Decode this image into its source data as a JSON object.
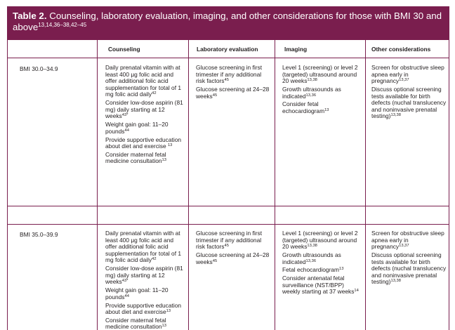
{
  "title": {
    "label": "Table 2.",
    "text": "Counseling, laboratory evaluation, imaging, and other considerations for those with BMI 30 and above",
    "refs": "13,14,36–38,42–45"
  },
  "columns": [
    "Counseling",
    "Laboratory evaluation",
    "Imaging",
    "Other considerations"
  ],
  "rows": [
    {
      "label": "BMI 30.0–34.9",
      "counseling": [
        {
          "text": "Daily prenatal vitamin with at least 400 μg folic acid and offer additional folic acid supplementation for total of 1 mg folic acid daily",
          "ref": "42"
        },
        {
          "text": "Consider low-dose aspirin (81 mg) daily starting at 12 weeks",
          "ref": "43*"
        },
        {
          "text": "Weight gain goal: 11–20 pounds",
          "ref": "44"
        },
        {
          "text": "Provide supportive education about diet and exercise ",
          "ref": "13"
        },
        {
          "text": "Consider maternal fetal medicine consultation",
          "ref": "13"
        }
      ],
      "lab": [
        {
          "text": "Glucose screening in first trimester if any additional risk factors",
          "ref": "45"
        },
        {
          "text": "Glucose screening at 24–28 weeks",
          "ref": "45"
        }
      ],
      "imaging": [
        {
          "text": "Level 1 (screening) or level 2 (targeted) ultrasound around 20 weeks",
          "ref": "13,38"
        },
        {
          "text": "Growth ultrasounds as indicated",
          "ref": "13,36"
        },
        {
          "text": "Consider fetal echocardiogram",
          "ref": "13"
        }
      ],
      "other": [
        {
          "text": "Screen for obstructive sleep apnea early in pregnancy",
          "ref": "13,37"
        },
        {
          "text": "Discuss optional screening tests available for birth defects (nuchal translucency and noninvasive prenatal testing)",
          "ref": "13,38"
        }
      ]
    },
    {
      "label": "BMI 35.0–39.9",
      "counseling": [
        {
          "text": "Daily prenatal vitamin with at least 400 μg folic acid and offer additional folic acid supplementation for total of 1 mg folic acid daily",
          "ref": "42"
        },
        {
          "text": "Consider low-dose aspirin (81 mg) daily starting at 12 weeks",
          "ref": "43*"
        },
        {
          "text": "Weight gain goal: 11–20 pounds",
          "ref": "44"
        },
        {
          "text": "Provide supportive education about diet and exercise",
          "ref": "13"
        },
        {
          "text": "Consider maternal fetal medicine consultation",
          "ref": "13"
        }
      ],
      "lab": [
        {
          "text": "Glucose screening in first trimester if any additional risk factors",
          "ref": "45"
        },
        {
          "text": "Glucose screening at 24–28 weeks",
          "ref": "45"
        }
      ],
      "imaging": [
        {
          "text": "Level 1 (screening) or level 2 (targeted) ultrasound around 20 weeks",
          "ref": "13,38"
        },
        {
          "text": "Growth ultrasounds as indicated",
          "ref": "13,36"
        },
        {
          "text": "Fetal echocardiogram",
          "ref": "13"
        },
        {
          "text": "Consider antenatal fetal surveillance (NST/BPP) weekly starting at 37 weeks",
          "ref": "14"
        }
      ],
      "other": [
        {
          "text": "Screen for obstructive sleep apnea early in pregnancy",
          "ref": "13,37"
        },
        {
          "text": "Discuss optional screening tests available for birth defects (nuchal translucency and noninvasive prenatal testing)",
          "ref": "13,38"
        }
      ]
    }
  ]
}
